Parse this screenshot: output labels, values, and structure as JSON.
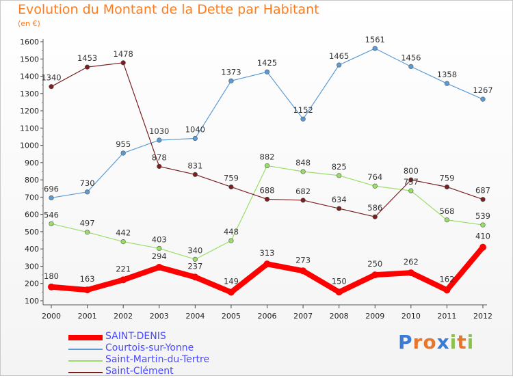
{
  "page": {
    "title": "Evolution du Montant de la Dette par Habitant",
    "unit": "(en €)",
    "brand": "Proxiti"
  },
  "chart_data": {
    "type": "line",
    "title": "Evolution du Montant de la Dette par Habitant",
    "subtitle": "(en €)",
    "xlabel": "",
    "ylabel": "",
    "x": [
      "2000",
      "2001",
      "2002",
      "2003",
      "2004",
      "2005",
      "2006",
      "2007",
      "2008",
      "2009",
      "2010",
      "2011",
      "2012"
    ],
    "ylim": [
      100,
      1600
    ],
    "yticks": [
      100,
      200,
      300,
      400,
      500,
      600,
      700,
      800,
      900,
      1000,
      1100,
      1200,
      1300,
      1400,
      1500,
      1600
    ],
    "grid": false,
    "legend_position": "bottom-left",
    "series": [
      {
        "name": "SAINT-DENIS",
        "color": "#ff0000",
        "values": [
          180,
          163,
          221,
          294,
          237,
          149,
          313,
          273,
          150,
          250,
          262,
          162,
          410
        ]
      },
      {
        "name": "Courtois-sur-Yonne",
        "color": "#5b9bd5",
        "values": [
          696,
          730,
          955,
          1030,
          1040,
          1373,
          1425,
          1152,
          1465,
          1561,
          1456,
          1358,
          1267
        ]
      },
      {
        "name": "Saint-Martin-du-Tertre",
        "color": "#99dd66",
        "values": [
          546,
          497,
          442,
          403,
          340,
          448,
          882,
          848,
          825,
          764,
          737,
          568,
          539
        ]
      },
      {
        "name": "Saint-Clément",
        "color": "#7a1f1f",
        "values": [
          1340,
          1453,
          1478,
          878,
          831,
          759,
          688,
          682,
          634,
          586,
          800,
          759,
          687
        ]
      }
    ]
  }
}
